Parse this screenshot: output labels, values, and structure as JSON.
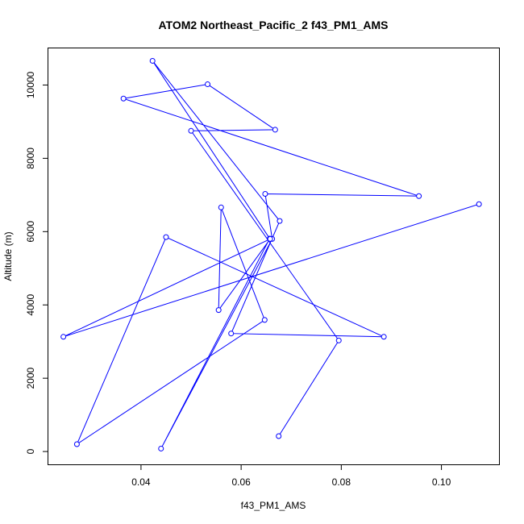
{
  "chart_data": {
    "type": "line",
    "title": "ATOM2 Northeast_Pacific_2 f43_PM1_AMS",
    "xlabel": "f43_PM1_AMS",
    "ylabel": "Altitude (m)",
    "xlim": [
      0.0215,
      0.1115
    ],
    "ylim": [
      -350,
      11000
    ],
    "xticks": [
      0.04,
      0.06,
      0.08,
      0.1
    ],
    "xtick_labels": [
      "0.04",
      "0.06",
      "0.08",
      "0.10"
    ],
    "yticks": [
      0,
      2000,
      4000,
      6000,
      8000,
      10000
    ],
    "ytick_labels": [
      "0",
      "2000",
      "4000",
      "6000",
      "8000",
      "10000"
    ],
    "grid": false,
    "series": [
      {
        "color": "#0000ff",
        "marker": "open-circle",
        "points": [
          {
            "x": 0.0675,
            "y": 420
          },
          {
            "x": 0.0795,
            "y": 3030
          },
          {
            "x": 0.05,
            "y": 8750
          },
          {
            "x": 0.0668,
            "y": 8780
          },
          {
            "x": 0.0533,
            "y": 10020
          },
          {
            "x": 0.0365,
            "y": 9630
          },
          {
            "x": 0.0955,
            "y": 6970
          },
          {
            "x": 0.0648,
            "y": 7030
          },
          {
            "x": 0.0662,
            "y": 5800
          },
          {
            "x": 0.044,
            "y": 80
          },
          {
            "x": 0.0657,
            "y": 5810
          },
          {
            "x": 0.0423,
            "y": 10660
          },
          {
            "x": 0.0677,
            "y": 6290
          },
          {
            "x": 0.058,
            "y": 3220
          },
          {
            "x": 0.0885,
            "y": 3130
          },
          {
            "x": 0.045,
            "y": 5850
          },
          {
            "x": 0.0272,
            "y": 200
          },
          {
            "x": 0.0647,
            "y": 3590
          },
          {
            "x": 0.056,
            "y": 6660
          },
          {
            "x": 0.0555,
            "y": 3860
          },
          {
            "x": 0.0658,
            "y": 5800
          },
          {
            "x": 0.0245,
            "y": 3130
          },
          {
            "x": 0.1075,
            "y": 6750
          }
        ]
      }
    ]
  }
}
